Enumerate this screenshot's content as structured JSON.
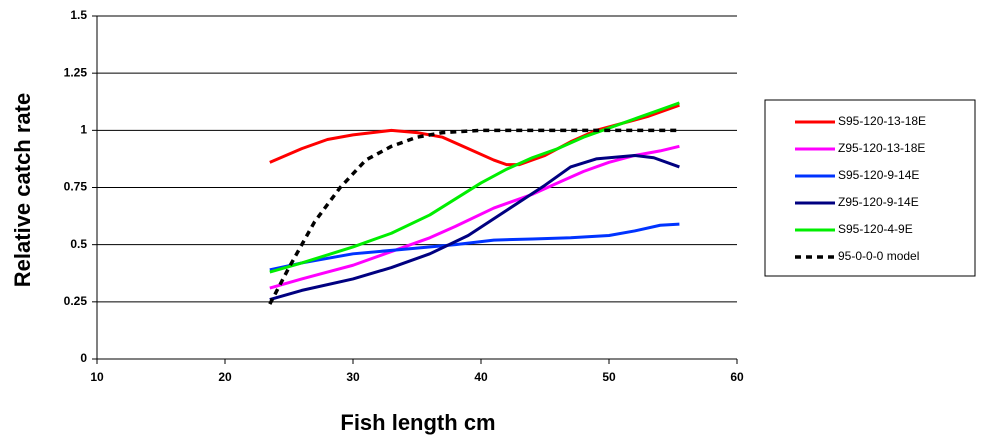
{
  "chart_data": {
    "type": "line",
    "xlabel": "Fish length cm",
    "ylabel": "Relative catch rate",
    "xlim": [
      10,
      60
    ],
    "xticks": [
      10,
      20,
      30,
      40,
      50,
      60
    ],
    "ylim": [
      0,
      1.5
    ],
    "yticks": [
      0,
      0.25,
      0.5,
      0.75,
      1,
      1.25,
      1.5
    ],
    "grid": true,
    "legend": "right",
    "series": [
      {
        "name": "S95-120-13-18E",
        "color": "#ff0000",
        "style": "solid",
        "x": [
          23.5,
          26,
          28,
          30,
          33,
          35,
          37,
          39,
          41,
          42,
          43,
          45,
          47,
          49,
          51,
          53,
          55.5
        ],
        "values": [
          0.86,
          0.92,
          0.96,
          0.98,
          1.0,
          0.99,
          0.97,
          0.92,
          0.87,
          0.85,
          0.85,
          0.89,
          0.95,
          1.0,
          1.03,
          1.06,
          1.11
        ]
      },
      {
        "name": "Z95-120-13-18E",
        "color": "#ff00ff",
        "style": "solid",
        "x": [
          23.5,
          26,
          28,
          30,
          33,
          36,
          38,
          41,
          44,
          46,
          48,
          50,
          52,
          54,
          55.5
        ],
        "values": [
          0.31,
          0.35,
          0.38,
          0.41,
          0.47,
          0.53,
          0.58,
          0.66,
          0.72,
          0.77,
          0.82,
          0.86,
          0.89,
          0.91,
          0.93
        ]
      },
      {
        "name": "S95-120-9-14E",
        "color": "#0033ff",
        "style": "solid",
        "x": [
          23.5,
          26,
          30,
          34,
          38,
          41,
          44,
          47,
          50,
          52,
          54,
          55.5
        ],
        "values": [
          0.39,
          0.42,
          0.46,
          0.48,
          0.5,
          0.52,
          0.525,
          0.53,
          0.54,
          0.56,
          0.585,
          0.59
        ]
      },
      {
        "name": "Z95-120-9-14E",
        "color": "#000080",
        "style": "solid",
        "x": [
          23.5,
          26,
          30,
          33,
          36,
          39,
          42,
          45,
          47,
          49,
          51,
          52,
          53.5,
          55.5
        ],
        "values": [
          0.26,
          0.3,
          0.35,
          0.4,
          0.46,
          0.54,
          0.65,
          0.76,
          0.84,
          0.875,
          0.885,
          0.89,
          0.88,
          0.84
        ]
      },
      {
        "name": "S95-120-4-9E",
        "color": "#00ee00",
        "style": "solid",
        "x": [
          23.5,
          26,
          30,
          33,
          36,
          38,
          40,
          42,
          44,
          46,
          48,
          50,
          52,
          54,
          55.5
        ],
        "values": [
          0.38,
          0.42,
          0.49,
          0.55,
          0.63,
          0.7,
          0.77,
          0.83,
          0.88,
          0.92,
          0.97,
          1.01,
          1.05,
          1.09,
          1.12
        ]
      },
      {
        "name": "95-0-0-0 model",
        "color": "#000000",
        "style": "dashed",
        "x": [
          23.5,
          25,
          27,
          29,
          31,
          33,
          35,
          37,
          40,
          45,
          50,
          55.5
        ],
        "values": [
          0.24,
          0.4,
          0.6,
          0.75,
          0.87,
          0.93,
          0.97,
          0.99,
          1.0,
          1.0,
          1.0,
          1.0
        ]
      }
    ]
  }
}
